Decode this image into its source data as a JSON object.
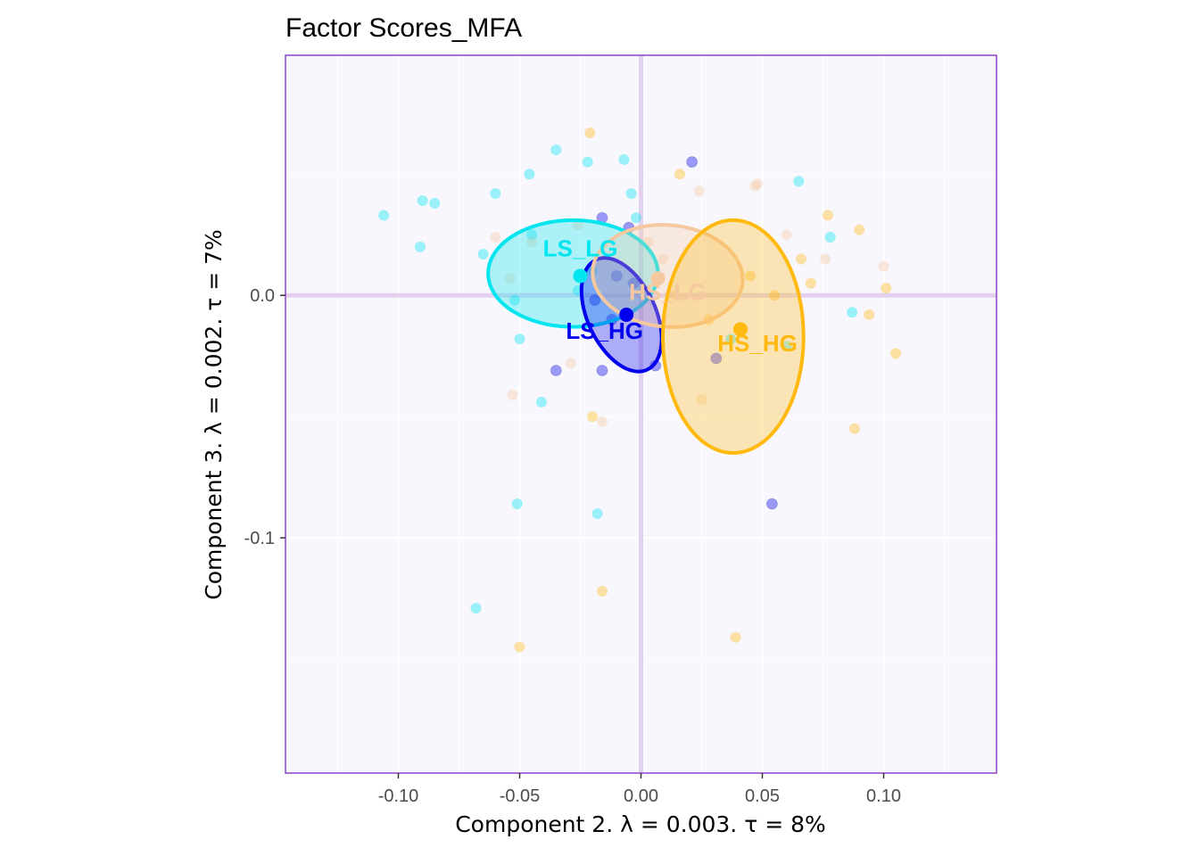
{
  "chart_data": {
    "type": "scatter",
    "title": "Factor Scores_MFA",
    "xlabel": "Component 2.   λ = 0.003.  τ = 8%",
    "ylabel": "Component 3.   λ = 0.002.  τ = 7%",
    "xlim": [
      -0.1465,
      0.1465
    ],
    "ylim": [
      -0.197,
      0.099
    ],
    "x_ticks": [
      -0.1,
      -0.05,
      0.0,
      0.05,
      0.1
    ],
    "x_tick_labels": [
      "-0.10",
      "-0.05",
      "0.00",
      "0.05",
      "0.10"
    ],
    "y_ticks": [
      -0.1,
      0.0
    ],
    "y_tick_labels": [
      "-0.1",
      "0.0"
    ],
    "grid": true,
    "background": "#f8f7fd",
    "frame_color": "#8e44c9",
    "axis_line_color": "#e4d1ef",
    "groups": [
      {
        "name": "LS_LG",
        "color": "#00e5ee",
        "mean": [
          -0.025,
          0.008
        ],
        "ellipse": {
          "center": [
            -0.028,
            0.009
          ],
          "rx": 0.035,
          "ry": 0.022,
          "angle_deg": 0
        },
        "points": [
          [
            -0.106,
            0.033
          ],
          [
            -0.09,
            0.039
          ],
          [
            -0.085,
            0.038
          ],
          [
            -0.091,
            0.02
          ],
          [
            -0.065,
            0.017
          ],
          [
            -0.06,
            0.042
          ],
          [
            -0.046,
            0.05
          ],
          [
            -0.035,
            0.06
          ],
          [
            -0.022,
            0.055
          ],
          [
            -0.007,
            0.056
          ],
          [
            -0.004,
            0.042
          ],
          [
            -0.002,
            0.032
          ],
          [
            -0.045,
            0.025
          ],
          [
            -0.052,
            -0.002
          ],
          [
            -0.05,
            -0.018
          ],
          [
            -0.041,
            -0.044
          ],
          [
            -0.051,
            -0.086
          ],
          [
            -0.018,
            -0.09
          ],
          [
            -0.068,
            -0.129
          ],
          [
            0.065,
            0.047
          ],
          [
            0.078,
            0.024
          ],
          [
            0.087,
            -0.007
          ],
          [
            0.06,
            -0.021
          ],
          [
            0.037,
            -0.018
          ],
          [
            -0.026,
            0.002
          ],
          [
            -0.02,
            0.01
          ]
        ]
      },
      {
        "name": "LS_HG",
        "color": "#0000ee",
        "mean": [
          -0.006,
          -0.008
        ],
        "ellipse": {
          "center": [
            -0.008,
            -0.008
          ],
          "rx": 0.014,
          "ry": 0.025,
          "angle_deg": -25
        },
        "points": [
          [
            0.021,
            0.055
          ],
          [
            -0.016,
            0.032
          ],
          [
            -0.005,
            0.028
          ],
          [
            -0.01,
            0.008
          ],
          [
            -0.019,
            -0.002
          ],
          [
            -0.035,
            -0.031
          ],
          [
            -0.016,
            -0.031
          ],
          [
            0.006,
            -0.029
          ],
          [
            0.031,
            -0.026
          ],
          [
            0.054,
            -0.086
          ],
          [
            -0.003,
            0.005
          ],
          [
            -0.012,
            -0.01
          ]
        ]
      },
      {
        "name": "HS_LG",
        "color": "#f5c8a0",
        "mean": [
          0.007,
          0.007
        ],
        "ellipse": {
          "center": [
            0.011,
            0.008
          ],
          "rx": 0.031,
          "ry": 0.021,
          "angle_deg": 5
        },
        "points": [
          [
            -0.06,
            0.024
          ],
          [
            -0.045,
            0.022
          ],
          [
            -0.054,
            0.007
          ],
          [
            -0.026,
            0.029
          ],
          [
            0.024,
            0.043
          ],
          [
            0.047,
            0.045
          ],
          [
            0.048,
            0.046
          ],
          [
            0.06,
            0.025
          ],
          [
            0.076,
            0.015
          ],
          [
            0.1,
            0.012
          ],
          [
            0.025,
            -0.043
          ],
          [
            -0.029,
            -0.028
          ],
          [
            -0.053,
            -0.041
          ],
          [
            -0.016,
            -0.052
          ],
          [
            0.009,
            0.015
          ],
          [
            0.014,
            0.0
          ],
          [
            0.003,
            0.022
          ]
        ]
      },
      {
        "name": "HS_HG",
        "color": "#ffb90f",
        "mean": [
          0.041,
          -0.014
        ],
        "ellipse": {
          "center": [
            0.038,
            -0.017
          ],
          "rx": 0.029,
          "ry": 0.048,
          "angle_deg": 0
        },
        "points": [
          [
            -0.021,
            0.067
          ],
          [
            0.016,
            0.05
          ],
          [
            0.077,
            0.033
          ],
          [
            0.09,
            0.027
          ],
          [
            0.066,
            0.015
          ],
          [
            0.07,
            0.005
          ],
          [
            0.101,
            0.003
          ],
          [
            0.094,
            -0.008
          ],
          [
            0.105,
            -0.024
          ],
          [
            0.055,
            0.0
          ],
          [
            0.045,
            0.008
          ],
          [
            -0.02,
            -0.05
          ],
          [
            0.088,
            -0.055
          ],
          [
            -0.016,
            -0.122
          ],
          [
            0.039,
            -0.141
          ],
          [
            -0.05,
            -0.145
          ],
          [
            0.028,
            -0.01
          ]
        ]
      }
    ],
    "group_labels": [
      {
        "name": "LS_LG",
        "at": [
          -0.025,
          0.016
        ]
      },
      {
        "name": "LS_HG",
        "at": [
          -0.015,
          -0.018
        ]
      },
      {
        "name": "HS_LG",
        "at": [
          0.011,
          -0.002
        ]
      },
      {
        "name": "HS_HG",
        "at": [
          0.048,
          -0.023
        ]
      }
    ]
  }
}
